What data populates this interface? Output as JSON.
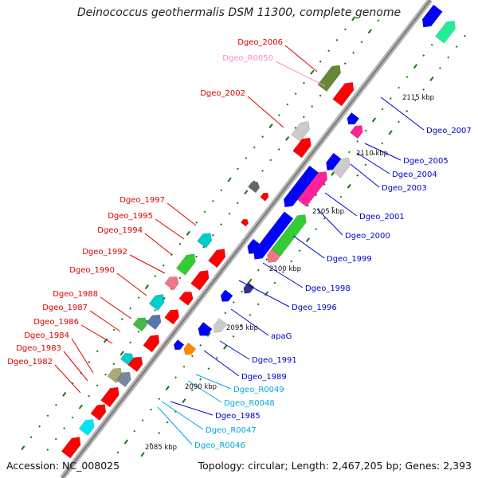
{
  "title": "Deinococcus geothermalis DSM 11300, complete genome",
  "accession": "Accession: NC_008025",
  "topology": "Topology: circular; Length: 2,467,205 bp; Genes: 2,393",
  "colors": {
    "backbone": "#9a9a9a",
    "left_label": "#dd0000",
    "right_label": "#0000cc",
    "rna_label": "#00aadd",
    "pink_label": "#ff88cc",
    "tick": "#117711"
  },
  "kbp_ticks": [
    "2085 kbp",
    "2090 kbp",
    "2095 kbp",
    "2100 kbp",
    "2105 kbp",
    "2110 kbp",
    "2115 kbp"
  ],
  "left_labels": [
    "Dgeo_2006",
    "Dgeo_R0050",
    "Dgeo_2002",
    "Dgeo_1997",
    "Dgeo_1995",
    "Dgeo_1994",
    "Dgeo_1992",
    "Dgeo_1990",
    "Dgeo_1988",
    "Dgeo_1987",
    "Dgeo_1986",
    "Dgeo_1984",
    "Dgeo_1983",
    "Dgeo_1982"
  ],
  "right_labels": [
    "Dgeo_2007",
    "Dgeo_2005",
    "Dgeo_2004",
    "Dgeo_2003",
    "Dgeo_2001",
    "Dgeo_2000",
    "Dgeo_1999",
    "Dgeo_1998",
    "Dgeo_1996",
    "apaG",
    "Dgeo_1991",
    "Dgeo_1989",
    "Dgeo_R0049",
    "Dgeo_R0048",
    "Dgeo_1985",
    "Dgeo_R0047",
    "Dgeo_R0046"
  ]
}
